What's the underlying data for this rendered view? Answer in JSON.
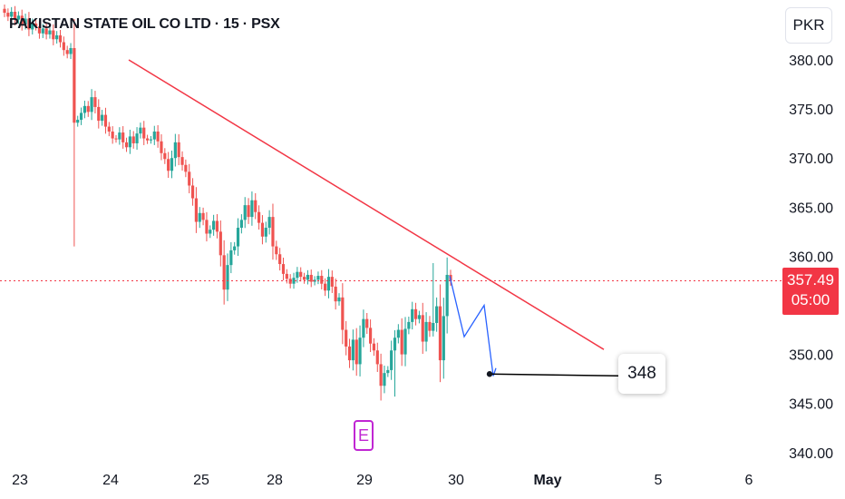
{
  "header": {
    "title": "PAKISTAN STATE OIL CO LTD · 15 · PSX"
  },
  "currency": "PKR",
  "price_tag": {
    "price": "357.49",
    "countdown": "05:00"
  },
  "target": {
    "label": "348",
    "value": 348
  },
  "earnings_badge": "E",
  "colors": {
    "up": "#26a69a",
    "down": "#ef5350",
    "trendline": "#f23645",
    "projection": "#2962ff",
    "target_line": "#000000",
    "price_line": "#f23645"
  },
  "chart_data": {
    "type": "candlestick",
    "symbol": "PAKISTAN STATE OIL CO LTD",
    "interval": "15",
    "exchange": "PSX",
    "y_ticks": [
      340,
      345,
      350,
      355,
      360,
      365,
      370,
      375,
      380
    ],
    "y_tick_labels": [
      "340.00",
      "345.00",
      "350.00",
      "",
      "360.00",
      "365.00",
      "370.00",
      "375.00",
      "380.00"
    ],
    "x_tick_labels": [
      "23",
      "24",
      "25",
      "28",
      "29",
      "30",
      "May",
      "5",
      "6"
    ],
    "ylim": [
      339.8,
      385.5
    ],
    "last_price": 357.49,
    "closes": [
      384.8,
      384.4,
      384.9,
      384.1,
      384.5,
      383.6,
      384.2,
      383.1,
      383.7,
      383.4,
      382.7,
      383.2,
      382.6,
      383.0,
      382.1,
      382.5,
      381.8,
      381.0,
      380.6,
      381.2,
      373.6,
      373.9,
      374.6,
      375.3,
      374.7,
      376.2,
      375.2,
      373.8,
      374.4,
      373.2,
      372.7,
      372.0,
      371.9,
      372.6,
      371.6,
      371.1,
      372.2,
      371.5,
      372.5,
      373.1,
      372.0,
      371.8,
      371.9,
      372.7,
      371.7,
      370.5,
      369.9,
      368.7,
      370.0,
      371.6,
      370.1,
      369.3,
      368.6,
      367.2,
      365.9,
      363.5,
      364.4,
      363.7,
      362.3,
      362.7,
      363.6,
      362.5,
      360.1,
      356.6,
      359.1,
      360.6,
      361.0,
      362.9,
      363.7,
      365.2,
      364.0,
      365.7,
      364.5,
      363.4,
      362.0,
      362.9,
      364.0,
      361.0,
      360.2,
      359.2,
      358.2,
      357.7,
      357.2,
      357.8,
      358.4,
      357.9,
      357.6,
      358.1,
      357.4,
      357.6,
      358.0,
      357.2,
      356.5,
      357.9,
      356.9,
      355.4,
      355.8,
      352.5,
      350.8,
      349.4,
      351.5,
      349.0,
      351.7,
      353.6,
      352.7,
      351.1,
      350.4,
      349.0,
      346.8,
      348.1,
      348.4,
      350.4,
      351.7,
      352.5,
      350.0,
      352.6,
      353.3,
      354.6,
      353.6,
      354.0,
      351.3,
      353.3,
      352.4,
      353.2,
      354.9,
      349.4,
      353.9,
      358.1,
      357.49
    ],
    "candle_range": {
      "x": [
        "23",
        "30"
      ]
    },
    "trendline": {
      "points": [
        {
          "x": "24",
          "y": 380.0
        },
        {
          "x": "1 May",
          "y": 350.5
        }
      ]
    },
    "projection_path": [
      {
        "x": "30",
        "y": 358.0
      },
      {
        "x": "30",
        "y": 351.8
      },
      {
        "x": "30",
        "y": 355.0
      },
      {
        "x": "30",
        "y": 347.8
      },
      {
        "x": "30",
        "y": 348.6
      }
    ],
    "target_line": {
      "y": 348
    },
    "grid": false
  }
}
